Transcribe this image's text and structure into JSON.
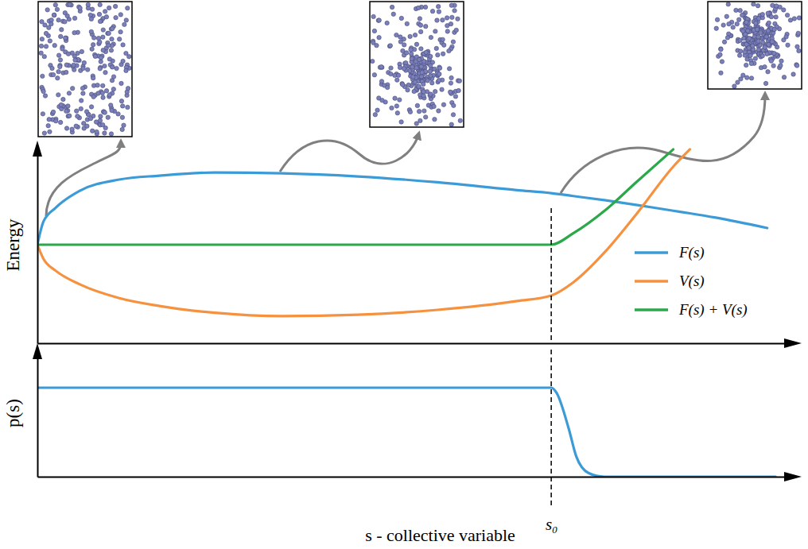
{
  "chart_data": [
    {
      "type": "line",
      "y_label": "Energy",
      "x": [
        0,
        0.08,
        0.24,
        0.56,
        1.08,
        1.61,
        2.34,
        3.23,
        4.23,
        5.28,
        6.33,
        6.78,
        7.07,
        7.5,
        7.9,
        8.39,
        8.61,
        8.95,
        9.63
      ],
      "series": [
        {
          "name": "F(s)",
          "color": "#3c9bd7",
          "values": [
            5.02,
            6.2,
            6.9,
            7.77,
            8.34,
            8.54,
            8.7,
            8.66,
            8.5,
            8.2,
            7.8,
            7.65,
            7.5,
            7.28,
            7.05,
            6.75,
            6.62,
            6.4,
            5.87
          ]
        },
        {
          "name": "V(s)",
          "color": "#f6923f",
          "values": [
            5.02,
            4.3,
            3.7,
            3.0,
            2.3,
            1.9,
            1.55,
            1.38,
            1.45,
            1.7,
            2.15,
            2.43,
            3.1,
            4.7,
            6.56,
            9.0,
            9.88,
            null,
            null
          ]
        },
        {
          "name": "F(s) + V(s)",
          "color": "#2aa84a",
          "values": [
            5.02,
            5.02,
            5.02,
            5.02,
            5.02,
            5.02,
            5.02,
            5.02,
            5.02,
            5.02,
            5.02,
            5.02,
            5.6,
            6.8,
            8.2,
            9.88,
            null,
            null,
            null
          ]
        }
      ],
      "xlim": [
        0,
        10
      ],
      "ylim": [
        0,
        10
      ],
      "xticks": [],
      "yticks": [],
      "tick_labels": false,
      "legend": "right"
    },
    {
      "type": "line",
      "y_label": "p(s)",
      "x_label": "s - collective variable",
      "x": [
        0,
        6.78,
        6.85,
        7.01,
        7.11,
        7.27,
        7.48,
        9.74
      ],
      "values": [
        0.7,
        0.7,
        0.66,
        0.38,
        0.16,
        0.03,
        0,
        0
      ],
      "color": "#3c9bd7",
      "xlim": [
        0,
        10
      ],
      "ylim": [
        0,
        1
      ],
      "xticks": [
        {
          "value": 6.78,
          "label": "s₀"
        }
      ],
      "yticks": [],
      "tick_labels": "x"
    }
  ]
}
